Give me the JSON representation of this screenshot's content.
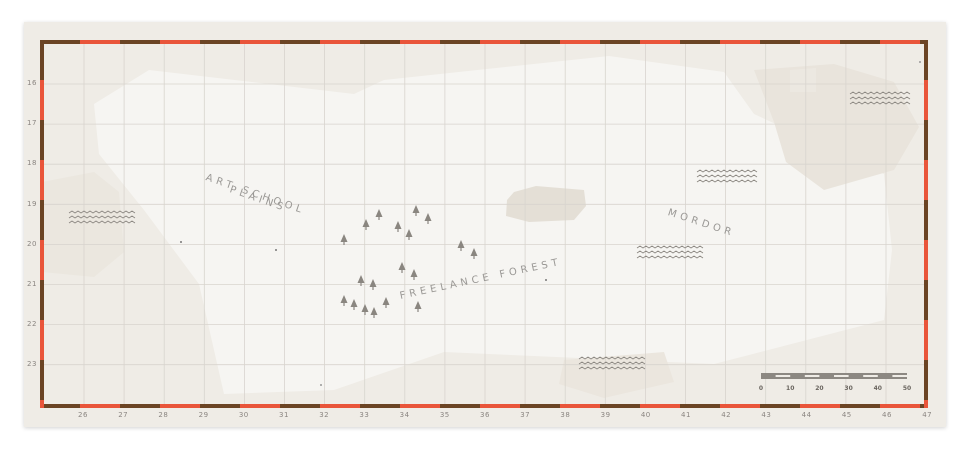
{
  "colors": {
    "border_dark": "#6b4424",
    "border_red": "#e9553a",
    "land_light": "#f5f4f1",
    "land_shade": "#e7e2da",
    "grid": "#d8d4ce",
    "marks": "#8a8680"
  },
  "y_axis_labels": [
    "16",
    "17",
    "18",
    "19",
    "20",
    "21",
    "22",
    "23"
  ],
  "x_axis_labels": [
    "26",
    "27",
    "28",
    "29",
    "30",
    "31",
    "32",
    "33",
    "34",
    "35",
    "36",
    "37",
    "38",
    "39",
    "40",
    "41",
    "42",
    "43",
    "44",
    "45",
    "46",
    "47"
  ],
  "regions": {
    "art_school": [
      "ART SCHOOL",
      "PLAINS"
    ],
    "freelance_forest": "FREELANCE FOREST",
    "mordor": "MORDOR"
  },
  "scale_bar": {
    "labels": [
      "0",
      "10",
      "20",
      "30",
      "40",
      "50"
    ]
  },
  "icons": {
    "forest": "pine-tree-icon",
    "water": "wave-lines-icon"
  }
}
